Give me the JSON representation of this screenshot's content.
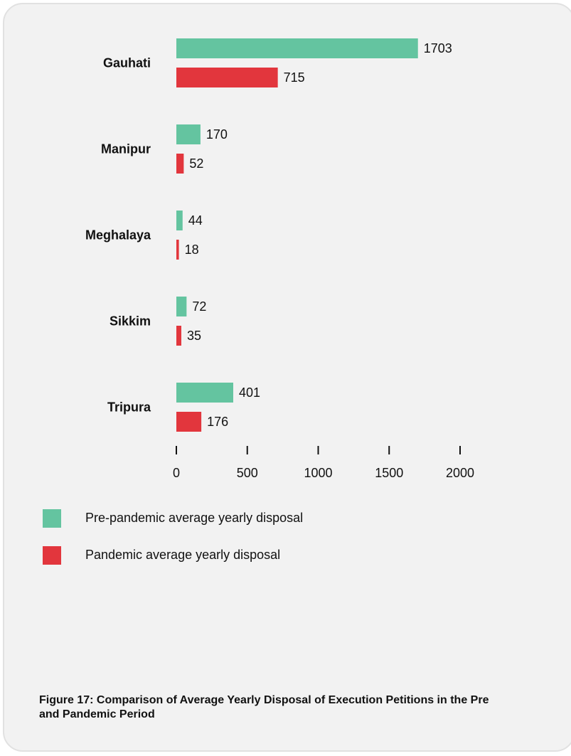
{
  "caption": "Figure 17: Comparison of Average Yearly Disposal of Execution Petitions in the Pre and Pandemic Period",
  "colors": {
    "pre": "#64c4a0",
    "pandemic": "#e2363d",
    "background": "#f2f2f2"
  },
  "legend": [
    {
      "label": "Pre-pandemic average yearly disposal",
      "color": "#64c4a0"
    },
    {
      "label": "Pandemic average yearly disposal",
      "color": "#e2363d"
    }
  ],
  "chart_data": {
    "type": "bar",
    "orientation": "horizontal",
    "categories": [
      "Gauhati",
      "Manipur",
      "Meghalaya",
      "Sikkim",
      "Tripura"
    ],
    "series": [
      {
        "name": "Pre-pandemic average yearly disposal",
        "values": [
          1703,
          170,
          44,
          72,
          401
        ]
      },
      {
        "name": "Pandemic average yearly disposal",
        "values": [
          715,
          52,
          18,
          35,
          176
        ]
      }
    ],
    "xticks": [
      "0",
      "500",
      "1000",
      "1500",
      "2000"
    ],
    "xlim": [
      0,
      2000
    ],
    "grid": false,
    "legend_position": "bottom-left"
  }
}
